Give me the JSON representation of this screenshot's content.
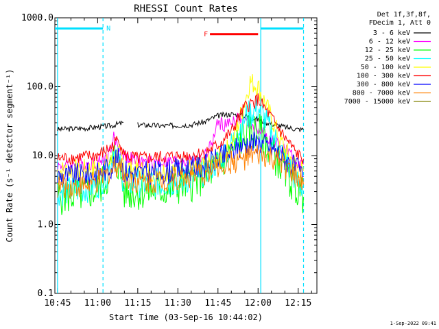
{
  "chart_data": {
    "type": "line",
    "title": "RHESSI Count Rates",
    "xlabel": "Start Time (03-Sep-16 10:44:02)",
    "ylabel": "Count Rate (s⁻¹ detector segment⁻¹)",
    "y_scale": "log",
    "ylim": [
      0.1,
      1000.0
    ],
    "xlim": [
      "10:44",
      "12:22"
    ],
    "x_ticks": [
      "10:45",
      "11:00",
      "11:15",
      "11:30",
      "11:45",
      "12:00",
      "12:15"
    ],
    "y_ticks": [
      "0.1",
      "1.0",
      "10.0",
      "100.0",
      "1000.0"
    ],
    "legend_header": [
      "Det 1f,3f,8f,",
      "FDecim 1, Att 0"
    ],
    "legend_position": "right",
    "series": [
      {
        "name": "3 - 6 keV",
        "color": "#000000",
        "x": [
          "10:45",
          "10:55",
          "11:00",
          "11:05",
          "11:08",
          "11:10",
          "11:12",
          "11:13",
          "11:15",
          "11:25",
          "11:35",
          "11:40",
          "11:45",
          "11:50",
          "11:55",
          "12:00",
          "12:05",
          "12:10",
          "12:15",
          "12:17"
        ],
        "values": [
          24,
          25,
          26,
          27,
          29,
          30,
          null,
          null,
          28,
          27,
          28,
          31,
          38,
          40,
          38,
          33,
          29,
          26,
          24,
          24
        ]
      },
      {
        "name": "6 - 12 keV",
        "color": "#ff00ff",
        "x": [
          "10:45",
          "10:55",
          "11:00",
          "11:04",
          "11:06",
          "11:08",
          "11:10",
          "11:15",
          "11:25",
          "11:35",
          "11:40",
          "11:43",
          "11:45",
          "11:48",
          "11:52",
          "11:55",
          "12:00",
          "12:05",
          "12:10",
          "12:15",
          "12:17"
        ],
        "values": [
          7,
          7.5,
          8,
          10,
          18,
          13,
          10,
          8,
          8,
          8.5,
          9.5,
          16,
          30,
          27,
          35,
          32,
          25,
          17,
          12,
          8,
          7.5
        ]
      },
      {
        "name": "12 - 25 keV",
        "color": "#00ff00",
        "x": [
          "10:45",
          "10:55",
          "11:00",
          "11:04",
          "11:06",
          "11:08",
          "11:10",
          "11:15",
          "11:25",
          "11:35",
          "11:40",
          "11:45",
          "11:50",
          "11:55",
          "12:00",
          "12:05",
          "12:10",
          "12:15",
          "12:17"
        ],
        "values": [
          2.5,
          2.8,
          3.2,
          5,
          10,
          7,
          3,
          3,
          3.2,
          4,
          5,
          7,
          12,
          20,
          24,
          12,
          6,
          3,
          2.5
        ]
      },
      {
        "name": "25 - 50 keV",
        "color": "#00ffff",
        "x": [
          "10:45",
          "10:55",
          "11:00",
          "11:04",
          "11:06",
          "11:08",
          "11:10",
          "11:15",
          "11:25",
          "11:35",
          "11:40",
          "11:45",
          "11:50",
          "11:55",
          "12:00",
          "12:05",
          "12:10",
          "12:15",
          "12:17"
        ],
        "values": [
          3,
          3.3,
          3.8,
          6,
          12,
          8,
          4,
          4,
          4,
          4.6,
          6,
          8,
          14,
          35,
          50,
          22,
          9,
          4,
          3.5
        ]
      },
      {
        "name": "50 - 100 keV",
        "color": "#ffff00",
        "x": [
          "10:45",
          "10:55",
          "11:00",
          "11:05",
          "11:08",
          "11:10",
          "11:15",
          "11:25",
          "11:35",
          "11:40",
          "11:45",
          "11:50",
          "11:55",
          "11:57",
          "12:00",
          "12:05",
          "12:10",
          "12:15",
          "12:17"
        ],
        "values": [
          6,
          6.2,
          6.5,
          8,
          10,
          7,
          6,
          6,
          6.5,
          7,
          9,
          14,
          60,
          120,
          100,
          35,
          12,
          6.5,
          6
        ]
      },
      {
        "name": "100 - 300 keV",
        "color": "#ff0000",
        "x": [
          "10:45",
          "10:55",
          "11:00",
          "11:05",
          "11:08",
          "11:10",
          "11:15",
          "11:25",
          "11:35",
          "11:40",
          "11:45",
          "11:50",
          "11:55",
          "12:00",
          "12:05",
          "12:10",
          "12:15",
          "12:17"
        ],
        "values": [
          9,
          9.5,
          10,
          13,
          18,
          10,
          9,
          9.5,
          10,
          11,
          14,
          22,
          50,
          65,
          35,
          18,
          10,
          9
        ]
      },
      {
        "name": "300 - 800 keV",
        "color": "#0000ff",
        "x": [
          "10:45",
          "10:55",
          "11:00",
          "11:05",
          "11:08",
          "11:10",
          "11:15",
          "11:25",
          "11:35",
          "11:40",
          "11:45",
          "11:50",
          "11:55",
          "12:00",
          "12:05",
          "12:10",
          "12:15",
          "12:17"
        ],
        "values": [
          5,
          5.2,
          5.5,
          7,
          9,
          6,
          5.5,
          5.8,
          6.5,
          7,
          9,
          11,
          15,
          16,
          13,
          9,
          6,
          5
        ]
      },
      {
        "name": "800 - 7000 keV",
        "color": "#ff8000",
        "x": [
          "10:45",
          "10:55",
          "11:00",
          "11:05",
          "11:08",
          "11:10",
          "11:15",
          "11:25",
          "11:35",
          "11:40",
          "11:45",
          "11:50",
          "11:55",
          "12:00",
          "12:05",
          "12:10",
          "12:15",
          "12:17"
        ],
        "values": [
          3.5,
          3.7,
          4,
          6,
          8,
          5,
          4.2,
          4.4,
          5,
          5.5,
          7,
          8,
          9,
          10,
          9,
          7,
          4.5,
          3.8
        ]
      },
      {
        "name": "7000 - 15000 keV",
        "color": "#808000",
        "x": [],
        "values": []
      }
    ],
    "annotations": {
      "night_bar": {
        "label": "N",
        "color": "#00e0ff",
        "x": [
          "10:44",
          "11:02"
        ],
        "y": 700
      },
      "night_bar_2": {
        "label": "",
        "color": "#00e0ff",
        "x": [
          "12:01",
          "12:17"
        ],
        "y": 700
      },
      "flare_bar": {
        "label": "F",
        "color": "#ff0000",
        "x": [
          "11:42",
          "12:00"
        ],
        "y": 580
      },
      "vlines": [
        {
          "x": "10:45",
          "style": "solid",
          "color": "#00e0ff"
        },
        {
          "x": "11:02",
          "style": "dashed",
          "color": "#00e0ff"
        },
        {
          "x": "12:01",
          "style": "solid",
          "color": "#00e0ff"
        },
        {
          "x": "12:17",
          "style": "dashed",
          "color": "#00e0ff"
        }
      ]
    },
    "timestamp": "1-Sep-2022 09:41"
  }
}
